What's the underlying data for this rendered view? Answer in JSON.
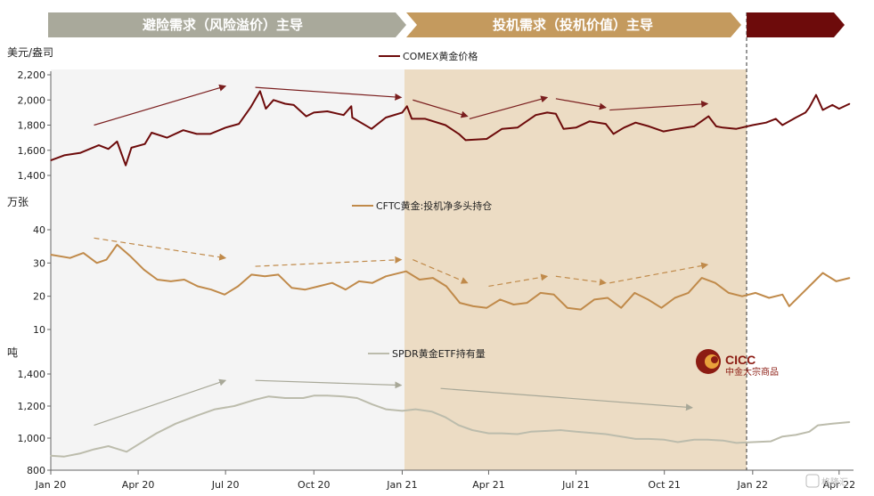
{
  "banners": [
    {
      "text": "避险需求（风险溢价）主导",
      "color": "#a9a99b"
    },
    {
      "text": "投机需求（投机价值）主导",
      "color": "#c49a5e"
    },
    {
      "text": "",
      "color": "#6d0b0b"
    }
  ],
  "logo": {
    "name": "CICC",
    "subtitle": "中金大宗商品"
  },
  "watermark": "格隆汇",
  "chart_data": [
    {
      "type": "line",
      "panel": "price",
      "unit_label": "美元/盎司",
      "series": [
        {
          "name": "COMEX黄金价格",
          "color": "#6d0b0b"
        }
      ],
      "ylim": [
        1400,
        2200
      ],
      "yticks": [
        1400,
        1600,
        1800,
        2000,
        2200
      ],
      "ytick_labels": [
        "1,400",
        "1,600",
        "1,800",
        "2,000",
        "2,200"
      ],
      "points": [
        [
          "2020-01-01",
          1520
        ],
        [
          "2020-01-15",
          1560
        ],
        [
          "2020-02-01",
          1580
        ],
        [
          "2020-02-20",
          1640
        ],
        [
          "2020-03-01",
          1610
        ],
        [
          "2020-03-10",
          1670
        ],
        [
          "2020-03-19",
          1480
        ],
        [
          "2020-03-25",
          1620
        ],
        [
          "2020-04-08",
          1650
        ],
        [
          "2020-04-15",
          1740
        ],
        [
          "2020-05-01",
          1700
        ],
        [
          "2020-05-18",
          1760
        ],
        [
          "2020-06-01",
          1730
        ],
        [
          "2020-06-15",
          1730
        ],
        [
          "2020-07-01",
          1780
        ],
        [
          "2020-07-15",
          1810
        ],
        [
          "2020-07-27",
          1940
        ],
        [
          "2020-08-06",
          2070
        ],
        [
          "2020-08-12",
          1930
        ],
        [
          "2020-08-20",
          2000
        ],
        [
          "2020-09-01",
          1970
        ],
        [
          "2020-09-10",
          1960
        ],
        [
          "2020-09-23",
          1870
        ],
        [
          "2020-10-01",
          1900
        ],
        [
          "2020-10-15",
          1910
        ],
        [
          "2020-11-01",
          1880
        ],
        [
          "2020-11-09",
          1950
        ],
        [
          "2020-11-10",
          1860
        ],
        [
          "2020-11-30",
          1770
        ],
        [
          "2020-12-15",
          1860
        ],
        [
          "2021-01-01",
          1900
        ],
        [
          "2021-01-06",
          1950
        ],
        [
          "2021-01-11",
          1850
        ],
        [
          "2021-01-25",
          1850
        ],
        [
          "2021-02-15",
          1800
        ],
        [
          "2021-03-01",
          1730
        ],
        [
          "2021-03-08",
          1680
        ],
        [
          "2021-03-30",
          1690
        ],
        [
          "2021-04-15",
          1770
        ],
        [
          "2021-05-01",
          1780
        ],
        [
          "2021-05-20",
          1880
        ],
        [
          "2021-06-01",
          1900
        ],
        [
          "2021-06-10",
          1890
        ],
        [
          "2021-06-18",
          1770
        ],
        [
          "2021-07-01",
          1780
        ],
        [
          "2021-07-15",
          1830
        ],
        [
          "2021-08-01",
          1810
        ],
        [
          "2021-08-09",
          1730
        ],
        [
          "2021-08-20",
          1780
        ],
        [
          "2021-09-01",
          1820
        ],
        [
          "2021-09-15",
          1790
        ],
        [
          "2021-09-30",
          1750
        ],
        [
          "2021-10-15",
          1770
        ],
        [
          "2021-11-01",
          1790
        ],
        [
          "2021-11-16",
          1870
        ],
        [
          "2021-11-24",
          1790
        ],
        [
          "2021-12-01",
          1780
        ],
        [
          "2021-12-15",
          1770
        ],
        [
          "2022-01-01",
          1800
        ],
        [
          "2022-01-15",
          1820
        ],
        [
          "2022-01-25",
          1850
        ],
        [
          "2022-02-01",
          1800
        ],
        [
          "2022-02-15",
          1860
        ],
        [
          "2022-02-25",
          1900
        ],
        [
          "2022-03-01",
          1940
        ],
        [
          "2022-03-08",
          2040
        ],
        [
          "2022-03-15",
          1920
        ],
        [
          "2022-03-25",
          1960
        ],
        [
          "2022-04-01",
          1930
        ],
        [
          "2022-04-12",
          1970
        ]
      ],
      "arrows": [
        [
          "2020-02-15",
          1800,
          "2020-07-01",
          2110
        ],
        [
          "2020-08-01",
          2100,
          "2020-12-31",
          2020
        ],
        [
          "2021-01-12",
          2000,
          "2021-03-10",
          1870
        ],
        [
          "2021-03-12",
          1850,
          "2021-06-01",
          2020
        ],
        [
          "2021-06-10",
          2010,
          "2021-08-01",
          1940
        ],
        [
          "2021-08-05",
          1920,
          "2021-11-15",
          1970
        ]
      ]
    },
    {
      "type": "line",
      "panel": "cftc",
      "unit_label": "万张",
      "series": [
        {
          "name": "CFTC黄金:投机净多头持仓",
          "color": "#c08a4a"
        }
      ],
      "ylim": [
        10,
        40
      ],
      "yticks": [
        10,
        20,
        30,
        40
      ],
      "ytick_labels": [
        "10",
        "20",
        "30",
        "40"
      ],
      "points": [
        [
          "2020-01-01",
          32.5
        ],
        [
          "2020-01-21",
          31.5
        ],
        [
          "2020-02-04",
          33
        ],
        [
          "2020-02-18",
          30
        ],
        [
          "2020-02-28",
          31
        ],
        [
          "2020-03-10",
          35.5
        ],
        [
          "2020-03-24",
          32
        ],
        [
          "2020-04-07",
          28
        ],
        [
          "2020-04-21",
          25
        ],
        [
          "2020-05-05",
          24.5
        ],
        [
          "2020-05-19",
          25
        ],
        [
          "2020-06-02",
          23
        ],
        [
          "2020-06-16",
          22
        ],
        [
          "2020-06-30",
          20.5
        ],
        [
          "2020-07-14",
          23
        ],
        [
          "2020-07-28",
          26.5
        ],
        [
          "2020-08-11",
          26
        ],
        [
          "2020-08-25",
          26.5
        ],
        [
          "2020-09-08",
          22.5
        ],
        [
          "2020-09-22",
          22
        ],
        [
          "2020-10-06",
          23
        ],
        [
          "2020-10-20",
          24
        ],
        [
          "2020-11-03",
          22
        ],
        [
          "2020-11-17",
          24.5
        ],
        [
          "2020-12-01",
          24
        ],
        [
          "2020-12-15",
          26
        ],
        [
          "2021-01-05",
          27.5
        ],
        [
          "2021-01-19",
          25
        ],
        [
          "2021-02-02",
          25.5
        ],
        [
          "2021-02-16",
          23
        ],
        [
          "2021-03-02",
          18
        ],
        [
          "2021-03-16",
          17
        ],
        [
          "2021-03-30",
          16.5
        ],
        [
          "2021-04-13",
          19
        ],
        [
          "2021-04-27",
          17.5
        ],
        [
          "2021-05-11",
          18
        ],
        [
          "2021-05-25",
          21
        ],
        [
          "2021-06-08",
          20.5
        ],
        [
          "2021-06-22",
          16.5
        ],
        [
          "2021-07-06",
          16
        ],
        [
          "2021-07-20",
          19
        ],
        [
          "2021-08-03",
          19.5
        ],
        [
          "2021-08-17",
          16.5
        ],
        [
          "2021-08-31",
          21
        ],
        [
          "2021-09-14",
          19
        ],
        [
          "2021-09-28",
          16.5
        ],
        [
          "2021-10-12",
          19.5
        ],
        [
          "2021-10-26",
          21
        ],
        [
          "2021-11-09",
          25.5
        ],
        [
          "2021-11-23",
          24
        ],
        [
          "2021-12-07",
          21
        ],
        [
          "2021-12-21",
          20
        ],
        [
          "2022-01-04",
          21
        ],
        [
          "2022-01-18",
          19.5
        ],
        [
          "2022-02-01",
          20.5
        ],
        [
          "2022-02-08",
          17
        ],
        [
          "2022-02-22",
          21
        ],
        [
          "2022-03-01",
          23
        ],
        [
          "2022-03-15",
          27
        ],
        [
          "2022-03-29",
          24.5
        ],
        [
          "2022-04-12",
          25.5
        ]
      ],
      "arrows": [
        [
          "2020-02-15",
          37.5,
          "2020-07-01",
          31.5
        ],
        [
          "2020-08-01",
          29,
          "2020-12-31",
          31
        ],
        [
          "2021-01-12",
          31,
          "2021-03-10",
          24
        ],
        [
          "2021-04-01",
          23,
          "2021-06-01",
          26
        ],
        [
          "2021-06-10",
          26,
          "2021-08-01",
          24
        ],
        [
          "2021-08-05",
          24,
          "2021-11-15",
          29.5
        ]
      ]
    },
    {
      "type": "line",
      "panel": "spdr",
      "unit_label": "吨",
      "series": [
        {
          "name": "SPDR黄金ETF持有量",
          "color": "#bcbcac"
        }
      ],
      "ylim": [
        800,
        1400
      ],
      "yticks": [
        800,
        1000,
        1200,
        1400
      ],
      "ytick_labels": [
        "800",
        "1,000",
        "1,200",
        "1,400"
      ],
      "xtick_labels": [
        "Jan 20",
        "Apr 20",
        "Jul 20",
        "Oct 20",
        "Jan 21",
        "Apr 21",
        "Jul 21",
        "Oct 21",
        "Jan 22",
        "Apr 22"
      ],
      "xtick_dates": [
        "2020-01-01",
        "2020-04-01",
        "2020-07-01",
        "2020-10-01",
        "2021-01-01",
        "2021-04-01",
        "2021-07-01",
        "2021-10-01",
        "2022-01-01",
        "2022-04-01"
      ],
      "points": [
        [
          "2020-01-01",
          890
        ],
        [
          "2020-01-15",
          885
        ],
        [
          "2020-02-01",
          905
        ],
        [
          "2020-02-15",
          930
        ],
        [
          "2020-03-01",
          950
        ],
        [
          "2020-03-20",
          915
        ],
        [
          "2020-04-01",
          960
        ],
        [
          "2020-04-20",
          1030
        ],
        [
          "2020-05-10",
          1090
        ],
        [
          "2020-06-01",
          1140
        ],
        [
          "2020-06-20",
          1180
        ],
        [
          "2020-07-10",
          1200
        ],
        [
          "2020-08-01",
          1240
        ],
        [
          "2020-08-15",
          1260
        ],
        [
          "2020-09-01",
          1250
        ],
        [
          "2020-09-20",
          1250
        ],
        [
          "2020-10-01",
          1265
        ],
        [
          "2020-10-15",
          1265
        ],
        [
          "2020-11-01",
          1260
        ],
        [
          "2020-11-15",
          1250
        ],
        [
          "2020-12-01",
          1210
        ],
        [
          "2020-12-15",
          1180
        ],
        [
          "2021-01-01",
          1170
        ],
        [
          "2021-01-15",
          1180
        ],
        [
          "2021-02-01",
          1165
        ],
        [
          "2021-02-15",
          1130
        ],
        [
          "2021-03-01",
          1080
        ],
        [
          "2021-03-15",
          1050
        ],
        [
          "2021-04-01",
          1030
        ],
        [
          "2021-04-15",
          1030
        ],
        [
          "2021-05-01",
          1025
        ],
        [
          "2021-05-15",
          1040
        ],
        [
          "2021-06-01",
          1045
        ],
        [
          "2021-06-15",
          1050
        ],
        [
          "2021-07-01",
          1040
        ],
        [
          "2021-08-01",
          1025
        ],
        [
          "2021-09-01",
          995
        ],
        [
          "2021-09-15",
          995
        ],
        [
          "2021-10-01",
          990
        ],
        [
          "2021-10-15",
          975
        ],
        [
          "2021-11-01",
          990
        ],
        [
          "2021-11-15",
          990
        ],
        [
          "2021-12-01",
          985
        ],
        [
          "2021-12-15",
          970
        ],
        [
          "2022-01-01",
          975
        ],
        [
          "2022-01-20",
          980
        ],
        [
          "2022-02-01",
          1010
        ],
        [
          "2022-02-15",
          1020
        ],
        [
          "2022-03-01",
          1040
        ],
        [
          "2022-03-10",
          1080
        ],
        [
          "2022-03-25",
          1090
        ],
        [
          "2022-04-12",
          1100
        ]
      ],
      "arrows": [
        [
          "2020-02-15",
          1080,
          "2020-07-01",
          1360
        ],
        [
          "2020-08-01",
          1360,
          "2020-12-31",
          1330
        ],
        [
          "2021-02-10",
          1310,
          "2021-10-30",
          1190
        ]
      ]
    }
  ]
}
